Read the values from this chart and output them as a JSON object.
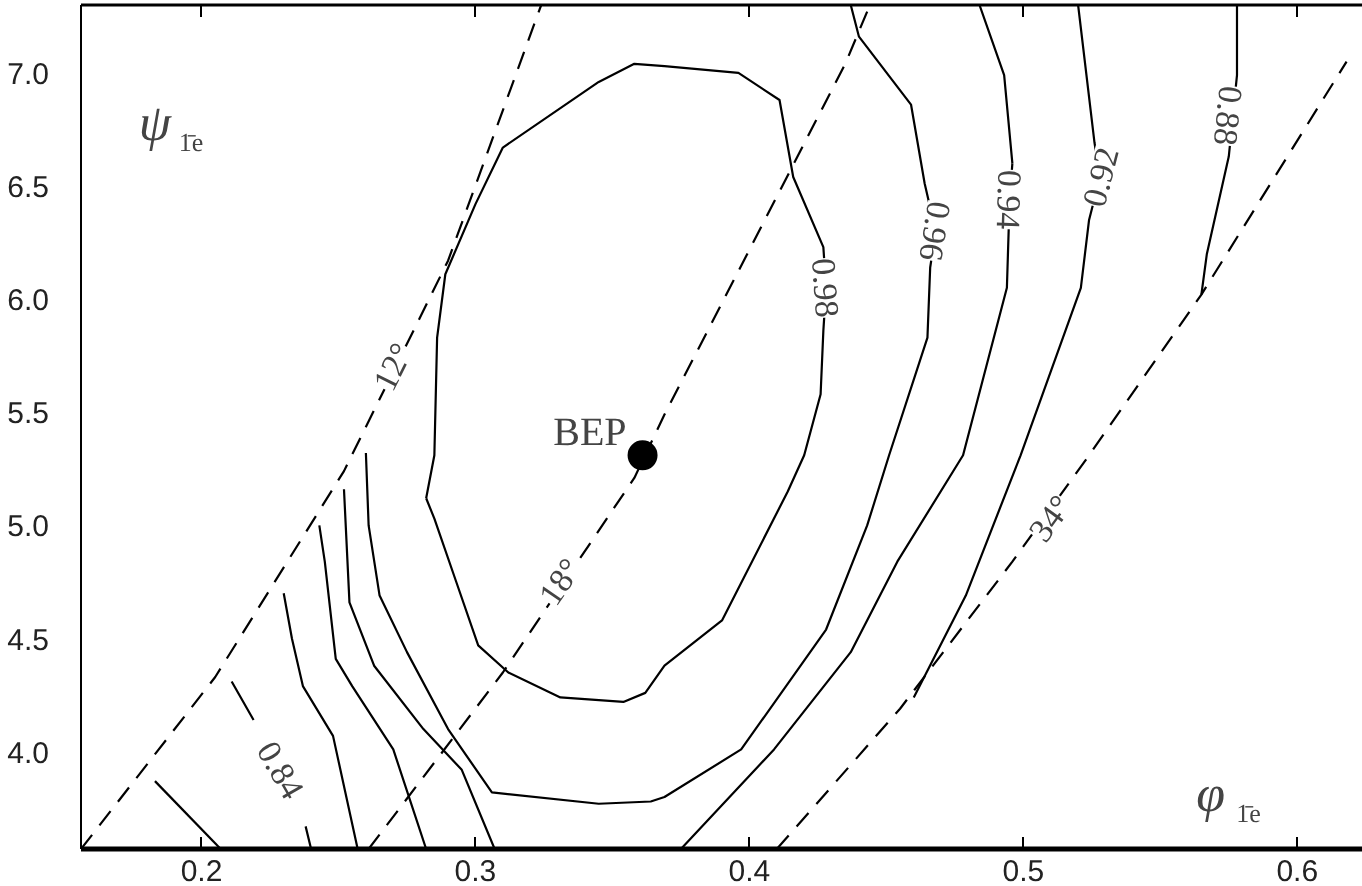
{
  "chart_data": {
    "type": "line",
    "xlabel": "φ$_{1̄e}$ [-]",
    "ylabel": "ψ$_{1̄e}$ [-]",
    "xlim": [
      0.156,
      0.624
    ],
    "ylim": [
      3.57,
      7.3
    ],
    "xticks": [
      0.2,
      0.3,
      0.4,
      0.5,
      0.6
    ],
    "yticks": [
      {
        "value": 4.0,
        "label": "4.0"
      },
      {
        "value": 4.5,
        "label": "4.5"
      },
      {
        "value": 5.0,
        "label": "5.0"
      },
      {
        "value": 5.5,
        "label": "5.5"
      },
      {
        "value": 6.0,
        "label": "6.0"
      },
      {
        "value": 6.5,
        "label": "6.5"
      },
      {
        "value": 7.0,
        "label": "7.0"
      }
    ],
    "grid": false,
    "series": [
      {
        "line_style": "solid",
        "color": "#000000",
        "x": [
          0.282,
          0.285,
          0.286,
          0.289,
          0.3,
          0.31,
          0.345,
          0.358,
          0.369,
          0.396,
          0.411,
          0.416,
          0.427,
          0.428
        ],
        "values": [
          5.12,
          5.31,
          5.83,
          6.11,
          6.42,
          6.67,
          6.96,
          7.04,
          7.03,
          7.0,
          6.88,
          6.54,
          6.23,
          6.05
        ]
      },
      {
        "line_style": "solid",
        "color": "#000000",
        "x": [
          0.428,
          0.427,
          0.426,
          0.42,
          0.414,
          0.39,
          0.369,
          0.362,
          0.354,
          0.331,
          0.312,
          0.301,
          0.293,
          0.285,
          0.282
        ],
        "values": [
          6.05,
          5.86,
          5.58,
          5.31,
          5.15,
          4.58,
          4.38,
          4.26,
          4.22,
          4.24,
          4.35,
          4.47,
          4.75,
          5.03,
          5.12
        ]
      },
      {
        "line_style": "solid",
        "color": "#000000",
        "x": [
          0.26,
          0.261,
          0.265,
          0.275,
          0.29,
          0.306,
          0.345,
          0.364,
          0.369,
          0.397,
          0.428,
          0.443,
          0.451,
          0.465,
          0.466,
          0.468
        ],
        "values": [
          5.32,
          5.0,
          4.69,
          4.44,
          4.1,
          3.82,
          3.77,
          3.78,
          3.8,
          4.01,
          4.54,
          5.0,
          5.31,
          5.83,
          6.14,
          6.3
        ]
      },
      {
        "line_style": "solid",
        "color": "#000000",
        "x": [
          0.468,
          0.464,
          0.459,
          0.44,
          0.437
        ],
        "values": [
          6.3,
          6.51,
          6.86,
          7.16,
          7.3
        ]
      },
      {
        "line_style": "solid",
        "color": "#000000",
        "x": [
          0.375,
          0.409,
          0.437,
          0.454,
          0.478,
          0.494,
          0.495,
          0.496
        ],
        "values": [
          3.57,
          4.01,
          4.44,
          4.84,
          5.31,
          6.05,
          6.44,
          6.6
        ]
      },
      {
        "line_style": "solid",
        "color": "#000000",
        "x": [
          0.496,
          0.493,
          0.484
        ],
        "values": [
          6.6,
          6.99,
          7.3
        ]
      },
      {
        "line_style": "solid",
        "color": "#000000",
        "x": [
          0.252,
          0.254,
          0.263,
          0.281,
          0.295,
          0.307
        ],
        "values": [
          5.16,
          4.66,
          4.38,
          4.1,
          3.92,
          3.57
        ]
      },
      {
        "line_style": "solid",
        "color": "#000000",
        "x": [
          0.243,
          0.245,
          0.249,
          0.255,
          0.27,
          0.282
        ],
        "values": [
          5.0,
          4.84,
          4.41,
          4.29,
          4.01,
          3.57
        ]
      },
      {
        "line_style": "solid",
        "color": "#000000",
        "x": [
          0.23,
          0.233,
          0.237,
          0.248,
          0.257
        ],
        "values": [
          4.7,
          4.5,
          4.29,
          4.07,
          3.57
        ]
      },
      {
        "line_style": "solid",
        "color": "#000000",
        "x": [
          0.211,
          0.219,
          0.229,
          0.238,
          0.24
        ],
        "values": [
          4.31,
          4.14,
          null,
          3.67,
          3.57
        ]
      },
      {
        "line_style": "solid",
        "color": "#000000",
        "x": [
          0.183,
          0.207
        ],
        "values": [
          3.87,
          3.57
        ]
      },
      {
        "line_style": "solid",
        "color": "#000000",
        "x": [
          0.46,
          0.479,
          0.499,
          0.521,
          0.524,
          0.528
        ],
        "values": [
          4.24,
          4.69,
          5.31,
          6.05,
          6.35,
          6.54
        ]
      },
      {
        "line_style": "solid",
        "color": "#000000",
        "x": [
          0.528,
          0.526,
          0.52
        ],
        "values": [
          6.54,
          6.69,
          7.3
        ]
      },
      {
        "line_style": "solid",
        "color": "#000000",
        "x": [
          0.565,
          0.567,
          0.575,
          0.578,
          0.578
        ],
        "values": [
          6.02,
          6.2,
          6.63,
          6.99,
          7.3
        ]
      },
      {
        "line_style": "dashed",
        "color": "#000000",
        "x": [
          0.156,
          0.205,
          0.252,
          0.29,
          0.324
        ],
        "values": [
          3.57,
          4.33,
          5.24,
          6.17,
          7.3
        ]
      },
      {
        "line_style": "dashed",
        "color": "#000000",
        "x": [
          0.261,
          0.31,
          0.358,
          0.369,
          0.435,
          0.444
        ],
        "values": [
          3.57,
          4.35,
          5.21,
          5.49,
          7.04,
          7.3
        ]
      },
      {
        "line_style": "dashed",
        "color": "#000000",
        "x": [
          0.41,
          0.455,
          0.496,
          0.524,
          0.565,
          0.618
        ],
        "values": [
          3.57,
          4.19,
          4.84,
          5.31,
          6.02,
          7.05
        ]
      },
      {
        "type": "scatter",
        "marker": "circle",
        "color": "#000000",
        "x": [
          0.361
        ],
        "values": [
          5.31
        ]
      }
    ],
    "annotations": [
      {
        "text": "BEP",
        "x": 0.361,
        "y": 5.31
      },
      {
        "text": "0.98",
        "x": 0.428,
        "y": 6.05
      },
      {
        "text": "0.96",
        "x": 0.468,
        "y": 6.3
      },
      {
        "text": "0.94",
        "x": 0.495,
        "y": 6.44
      },
      {
        "text": "0.92",
        "x": 0.528,
        "y": 6.54
      },
      {
        "text": "0.88",
        "x": 0.575,
        "y": 6.81
      },
      {
        "text": "0.84",
        "x": 0.229,
        "y": 3.92
      },
      {
        "text": "12°",
        "x": 0.27,
        "y": 5.7
      },
      {
        "text": "18°",
        "x": 0.331,
        "y": 4.75
      },
      {
        "text": "34°",
        "x": 0.51,
        "y": 5.03
      }
    ]
  }
}
